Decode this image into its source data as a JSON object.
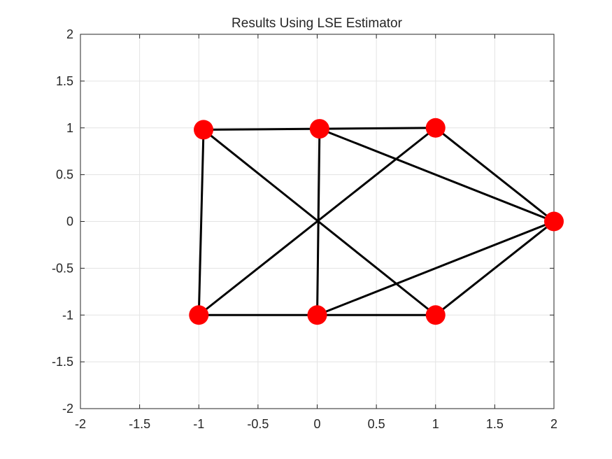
{
  "chart_data": {
    "type": "scatter",
    "title": "Results Using LSE Estimator",
    "xlabel": "",
    "ylabel": "",
    "xlim": [
      -2,
      2
    ],
    "ylim": [
      -2,
      2
    ],
    "xticks": [
      "-2",
      "-1.5",
      "-1",
      "-0.5",
      "0",
      "0.5",
      "1",
      "1.5",
      "2"
    ],
    "yticks": [
      "2",
      "1.5",
      "1",
      "0.5",
      "0",
      "-0.5",
      "-1",
      "-1.5",
      "-2"
    ],
    "grid": true,
    "nodes": [
      {
        "x": -0.96,
        "y": 0.98
      },
      {
        "x": 0.02,
        "y": 0.99
      },
      {
        "x": 1.0,
        "y": 1.0
      },
      {
        "x": 2.0,
        "y": 0.0
      },
      {
        "x": -1.0,
        "y": -1.0
      },
      {
        "x": 0.0,
        "y": -1.0
      },
      {
        "x": 1.0,
        "y": -1.0
      }
    ],
    "edges": [
      [
        0,
        1
      ],
      [
        1,
        2
      ],
      [
        0,
        4
      ],
      [
        0,
        6
      ],
      [
        1,
        5
      ],
      [
        1,
        3
      ],
      [
        2,
        4
      ],
      [
        2,
        3
      ],
      [
        4,
        5
      ],
      [
        5,
        6
      ],
      [
        5,
        3
      ],
      [
        6,
        3
      ]
    ],
    "node_color": "#ff0000",
    "edge_color": "#000000"
  }
}
